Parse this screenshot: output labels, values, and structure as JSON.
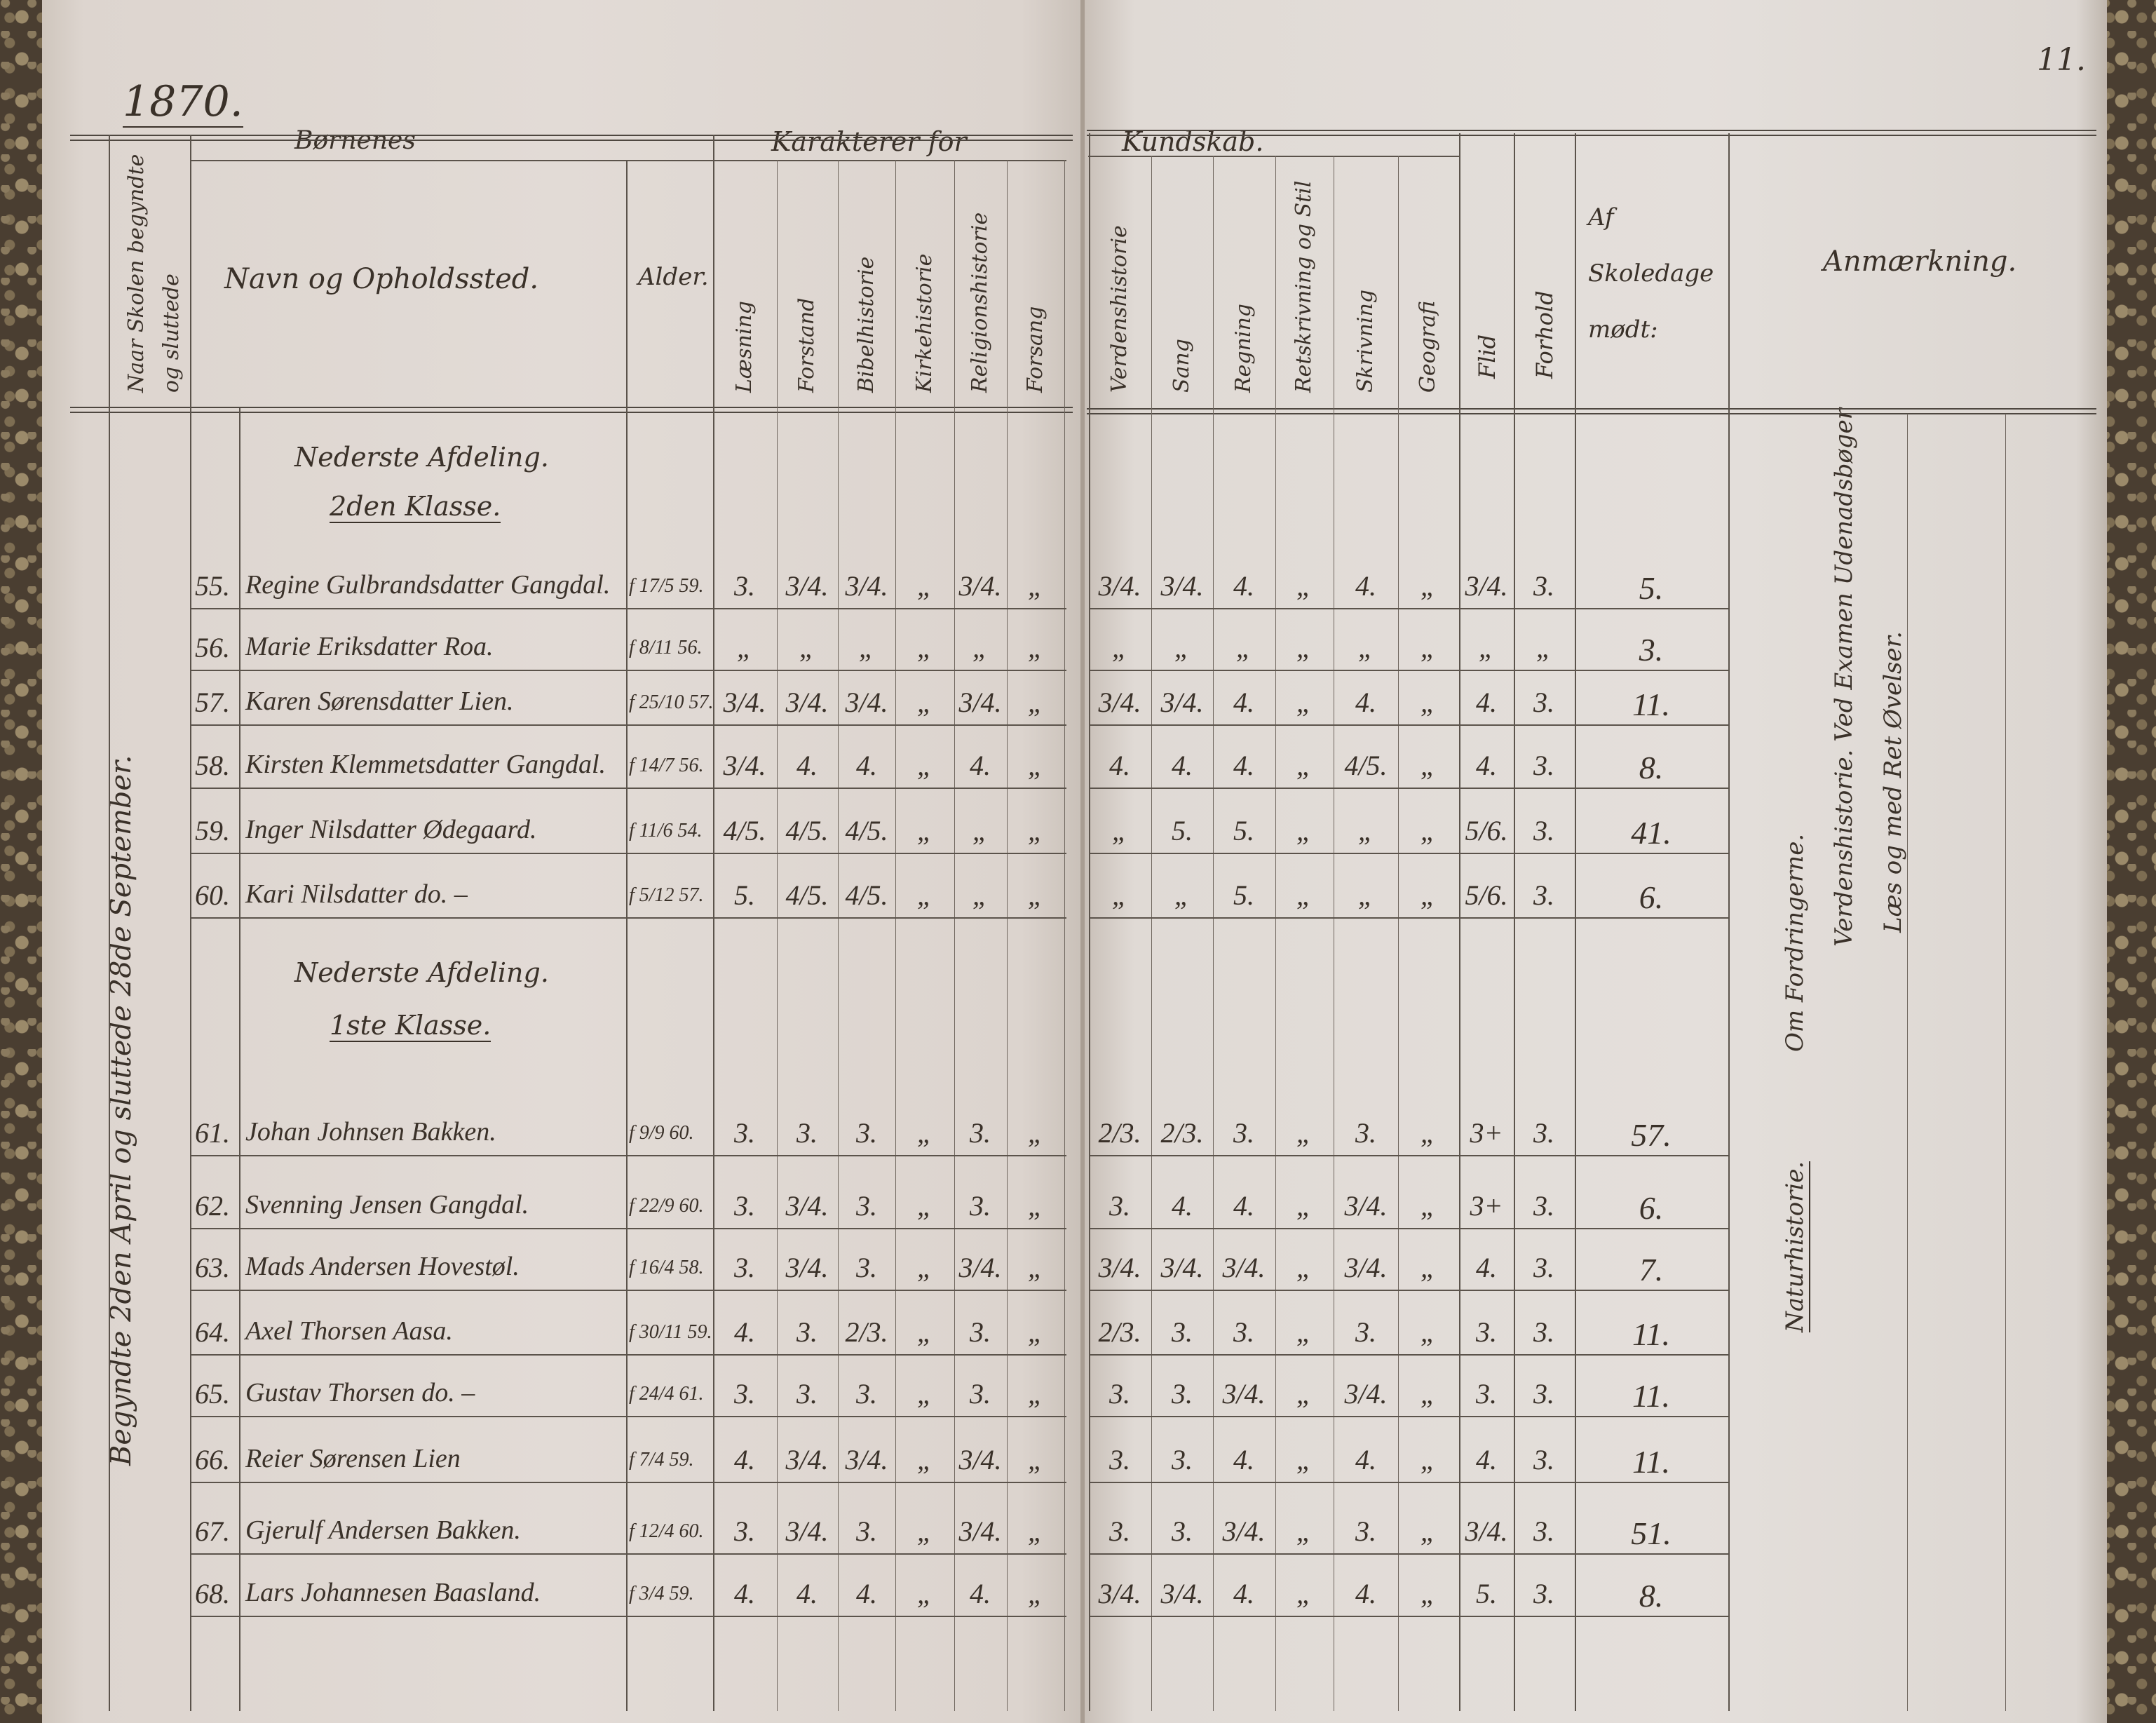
{
  "year": "1870.",
  "page_number": "11.",
  "header": {
    "margin_column": "Naar Skolen begyndte og sluttede",
    "children_label": "Børnenes",
    "name_label": "Navn og Opholdssted.",
    "age_label": "Alder.",
    "grades_group": "Karakterer for",
    "grades_columns": [
      "Læsning",
      "Forstand",
      "Bibelhistorie",
      "Kirkehistorie",
      "Religionshistorie",
      "Forsang"
    ],
    "knowledge_group": "Kundskab.",
    "knowledge_columns": [
      "Verdenshistorie",
      "Sang",
      "Regning",
      "Retskrivning og Stil",
      "Skrivning",
      "Geografi"
    ],
    "diligence_label": "Flid",
    "conduct_label": "Forhold",
    "attendance_label": "Af Skoledage mødt:",
    "remarks_label": "Anmærkning."
  },
  "margin_note": "Begyndte 2den April og sluttede 28de September.",
  "sections": [
    {
      "division": "Nederste Afdeling.",
      "class": "2den Klasse."
    },
    {
      "division": "Nederste Afdeling.",
      "class": "1ste Klasse."
    }
  ],
  "rows": [
    {
      "no": "55.",
      "name": "Regine Gulbrandsdatter Gangdal.",
      "born": "f 17/5 59.",
      "grades": [
        "3.",
        "3/4.",
        "3/4.",
        "„",
        "3/4.",
        "„"
      ],
      "knowledge": [
        "3/4.",
        "3/4.",
        "4.",
        "„",
        "4.",
        "„"
      ],
      "diligence": "3/4.",
      "conduct": "3.",
      "days_absent": "5."
    },
    {
      "no": "56.",
      "name": "Marie Eriksdatter Roa.",
      "born": "f 8/11 56.",
      "grades": [
        "„",
        "„",
        "„",
        "„",
        "„",
        "„"
      ],
      "knowledge": [
        "„",
        "„",
        "„",
        "„",
        "„",
        "„"
      ],
      "diligence": "„",
      "conduct": "„",
      "days_absent": "3."
    },
    {
      "no": "57.",
      "name": "Karen Sørensdatter Lien.",
      "born": "f 25/10 57.",
      "grades": [
        "3/4.",
        "3/4.",
        "3/4.",
        "„",
        "3/4.",
        "„"
      ],
      "knowledge": [
        "3/4.",
        "3/4.",
        "4.",
        "„",
        "4.",
        "„"
      ],
      "diligence": "4.",
      "conduct": "3.",
      "days_absent": "11."
    },
    {
      "no": "58.",
      "name": "Kirsten Klemmetsdatter Gangdal.",
      "born": "f 14/7 56.",
      "grades": [
        "3/4.",
        "4.",
        "4.",
        "„",
        "4.",
        "„"
      ],
      "knowledge": [
        "4.",
        "4.",
        "4.",
        "„",
        "4/5.",
        "„"
      ],
      "diligence": "4.",
      "conduct": "3.",
      "days_absent": "8."
    },
    {
      "no": "59.",
      "name": "Inger Nilsdatter Ødegaard.",
      "born": "f 11/6 54.",
      "grades": [
        "4/5.",
        "4/5.",
        "4/5.",
        "„",
        "„",
        "„"
      ],
      "knowledge": [
        "„",
        "5.",
        "5.",
        "„",
        "„",
        "„"
      ],
      "diligence": "5/6.",
      "conduct": "3.",
      "days_absent": "41."
    },
    {
      "no": "60.",
      "name": "Kari Nilsdatter      do. –",
      "born": "f 5/12 57.",
      "grades": [
        "5.",
        "4/5.",
        "4/5.",
        "„",
        "„",
        "„"
      ],
      "knowledge": [
        "„",
        "„",
        "5.",
        "„",
        "„",
        "„"
      ],
      "diligence": "5/6.",
      "conduct": "3.",
      "days_absent": "6."
    },
    {
      "no": "61.",
      "name": "Johan Johnsen Bakken.",
      "born": "f 9/9 60.",
      "grades": [
        "3.",
        "3.",
        "3.",
        "„",
        "3.",
        "„"
      ],
      "knowledge": [
        "2/3.",
        "2/3.",
        "3.",
        "„",
        "3.",
        "„"
      ],
      "diligence": "3+",
      "conduct": "3.",
      "days_absent": "57."
    },
    {
      "no": "62.",
      "name": "Svenning Jensen Gangdal.",
      "born": "f 22/9 60.",
      "grades": [
        "3.",
        "3/4.",
        "3.",
        "„",
        "3.",
        "„"
      ],
      "knowledge": [
        "3.",
        "4.",
        "4.",
        "„",
        "3/4.",
        "„"
      ],
      "diligence": "3+",
      "conduct": "3.",
      "days_absent": "6."
    },
    {
      "no": "63.",
      "name": "Mads Andersen Hovestøl.",
      "born": "f 16/4 58.",
      "grades": [
        "3.",
        "3/4.",
        "3.",
        "„",
        "3/4.",
        "„"
      ],
      "knowledge": [
        "3/4.",
        "3/4.",
        "3/4.",
        "„",
        "3/4.",
        "„"
      ],
      "diligence": "4.",
      "conduct": "3.",
      "days_absent": "7."
    },
    {
      "no": "64.",
      "name": "Axel Thorsen Aasa.",
      "born": "f 30/11 59.",
      "grades": [
        "4.",
        "3.",
        "2/3.",
        "„",
        "3.",
        "„"
      ],
      "knowledge": [
        "2/3.",
        "3.",
        "3.",
        "„",
        "3.",
        "„"
      ],
      "diligence": "3.",
      "conduct": "3.",
      "days_absent": "11."
    },
    {
      "no": "65.",
      "name": "Gustav Thorsen      do. –",
      "born": "f 24/4 61.",
      "grades": [
        "3.",
        "3.",
        "3.",
        "„",
        "3.",
        "„"
      ],
      "knowledge": [
        "3.",
        "3.",
        "3/4.",
        "„",
        "3/4.",
        "„"
      ],
      "diligence": "3.",
      "conduct": "3.",
      "days_absent": "11."
    },
    {
      "no": "66.",
      "name": "Reier Sørensen Lien",
      "born": "f 7/4 59.",
      "grades": [
        "4.",
        "3/4.",
        "3/4.",
        "„",
        "3/4.",
        "„"
      ],
      "knowledge": [
        "3.",
        "3.",
        "4.",
        "„",
        "4.",
        "„"
      ],
      "diligence": "4.",
      "conduct": "3.",
      "days_absent": "11."
    },
    {
      "no": "67.",
      "name": "Gjerulf Andersen Bakken.",
      "born": "f 12/4 60.",
      "grades": [
        "3.",
        "3/4.",
        "3.",
        "„",
        "3/4.",
        "„"
      ],
      "knowledge": [
        "3.",
        "3.",
        "3/4.",
        "„",
        "3.",
        "„"
      ],
      "diligence": "3/4.",
      "conduct": "3.",
      "days_absent": "51."
    },
    {
      "no": "68.",
      "name": "Lars Johannesen Baasland.",
      "born": "f 3/4 59.",
      "grades": [
        "4.",
        "4.",
        "4.",
        "„",
        "4.",
        "„"
      ],
      "knowledge": [
        "3/4.",
        "3/4.",
        "4.",
        "„",
        "4.",
        "„"
      ],
      "diligence": "5.",
      "conduct": "3.",
      "days_absent": "8."
    }
  ],
  "remarks": [
    {
      "text": "Naturhistorie.",
      "underlined": true
    },
    {
      "text": "Om Fordringerne.",
      "underlined": false
    },
    {
      "text": "Verdenshistorie. Ved Examen Udenadsbøger",
      "underlined": false
    },
    {
      "text": "Læs og med Ret Øvelser.",
      "underlined": false
    }
  ],
  "colors": {
    "ink": "#3a3129",
    "paper": "#e2dbd6",
    "marbled_edge": "#4a3e31"
  }
}
